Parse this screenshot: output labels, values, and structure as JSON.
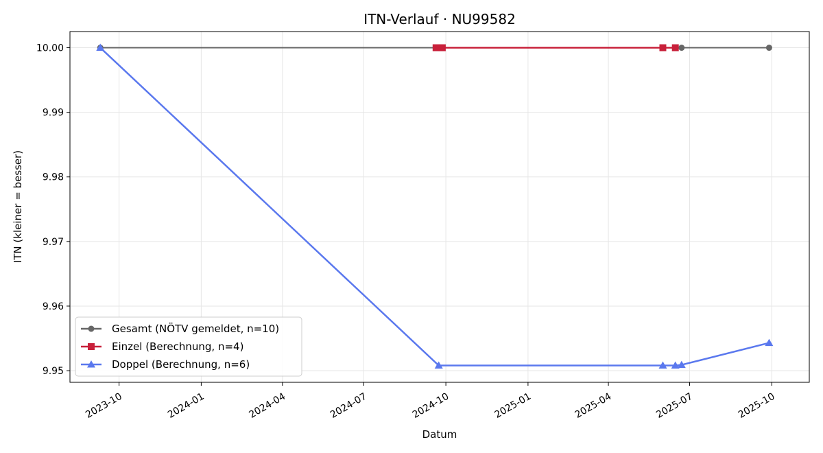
{
  "chart_data": {
    "type": "line",
    "title": "ITN-Verlauf · NU99582",
    "xlabel": "Datum",
    "ylabel": "ITN  (kleiner = besser)",
    "x_tick_labels": [
      "2023-10",
      "2024-01",
      "2024-04",
      "2024-07",
      "2024-10",
      "2025-01",
      "2025-04",
      "2025-07",
      "2025-10"
    ],
    "x_ticks": [
      "2023-10-01",
      "2024-01-01",
      "2024-04-01",
      "2024-07-01",
      "2024-10-01",
      "2025-01-01",
      "2025-04-01",
      "2025-07-01",
      "2025-10-01"
    ],
    "y_tick_labels": [
      "10.00",
      "9.99",
      "9.98",
      "9.97",
      "9.96",
      "9.95"
    ],
    "y_ticks": [
      10.0,
      9.99,
      9.98,
      9.97,
      9.96,
      9.95
    ],
    "xlim": [
      "2023-08-07",
      "2025-11-12"
    ],
    "ylim": [
      9.9482,
      10.0025
    ],
    "grid": true,
    "legend_position": "lower-left",
    "series": [
      {
        "name": "Gesamt (NÖTV gemeldet, n=10)",
        "color": "#666666",
        "marker": "circle",
        "x": [
          "2023-09-10",
          "2024-09-20",
          "2024-09-23",
          "2024-09-27",
          "2025-06-01",
          "2025-06-15",
          "2025-06-22",
          "2025-09-28"
        ],
        "y": [
          10.0,
          10.0,
          10.0,
          10.0,
          10.0,
          10.0,
          10.0,
          10.0
        ]
      },
      {
        "name": "Einzel (Berechnung, n=4)",
        "color": "#c8203a",
        "marker": "square",
        "x": [
          "2024-09-20",
          "2024-09-27",
          "2025-06-01",
          "2025-06-15"
        ],
        "y": [
          10.0,
          10.0,
          10.0,
          10.0
        ]
      },
      {
        "name": "Doppel (Berechnung, n=6)",
        "color": "#5a78ee",
        "marker": "triangle",
        "x": [
          "2023-09-10",
          "2024-09-23",
          "2025-06-01",
          "2025-06-15",
          "2025-06-22",
          "2025-09-28"
        ],
        "y": [
          10.0,
          9.9508,
          9.9508,
          9.9508,
          9.9509,
          9.9543
        ]
      }
    ]
  }
}
